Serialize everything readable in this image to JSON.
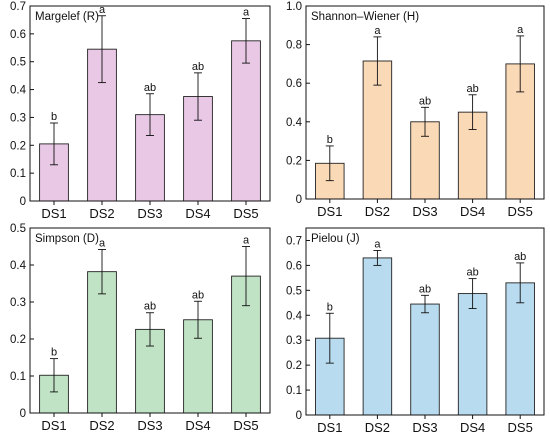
{
  "chart_data": [
    {
      "type": "bar",
      "title": "Margelef  (R)",
      "categories": [
        "DS1",
        "DS2",
        "DS3",
        "DS4",
        "DS5"
      ],
      "values": [
        0.205,
        0.545,
        0.31,
        0.375,
        0.575
      ],
      "errors": [
        0.075,
        0.12,
        0.075,
        0.085,
        0.08
      ],
      "letters": [
        "b",
        "a",
        "ab",
        "ab",
        "a"
      ],
      "ylim": [
        0,
        0.7
      ],
      "yticks": [
        0,
        0.1,
        0.2,
        0.3,
        0.4,
        0.5,
        0.6,
        0.7
      ],
      "ytick_labels": [
        "0",
        "0.1",
        "0.2",
        "0.3",
        "0.4",
        "0.5",
        "0.6",
        "0.7"
      ],
      "color": "#e8c8e4"
    },
    {
      "type": "bar",
      "title": "Shannon–Wiener (H)",
      "categories": [
        "DS1",
        "DS2",
        "DS3",
        "DS4",
        "DS5"
      ],
      "values": [
        0.185,
        0.715,
        0.4,
        0.45,
        0.7
      ],
      "errors": [
        0.09,
        0.125,
        0.075,
        0.09,
        0.145
      ],
      "letters": [
        "b",
        "a",
        "ab",
        "ab",
        "a"
      ],
      "ylim": [
        0,
        1.0
      ],
      "yticks": [
        0,
        0.2,
        0.4,
        0.6,
        0.8,
        1.0
      ],
      "ytick_labels": [
        "0",
        "0.2",
        "0.4",
        "0.6",
        "0.8",
        "1.0"
      ],
      "color": "#fad9b6"
    },
    {
      "type": "bar",
      "title": "Simpson (D)",
      "categories": [
        "DS1",
        "DS2",
        "DS3",
        "DS4",
        "DS5"
      ],
      "values": [
        0.102,
        0.382,
        0.226,
        0.252,
        0.37
      ],
      "errors": [
        0.045,
        0.06,
        0.045,
        0.05,
        0.08
      ],
      "letters": [
        "b",
        "a",
        "ab",
        "ab",
        "a"
      ],
      "ylim": [
        0,
        0.5
      ],
      "yticks": [
        0,
        0.1,
        0.2,
        0.3,
        0.4,
        0.5
      ],
      "ytick_labels": [
        "0",
        "0.1",
        "0.2",
        "0.3",
        "0.4",
        "0.5"
      ],
      "color": "#bfe3c4"
    },
    {
      "type": "bar",
      "title": "Pielou (J)",
      "categories": [
        "DS1",
        "DS2",
        "DS3",
        "DS4",
        "DS5"
      ],
      "values": [
        0.308,
        0.63,
        0.445,
        0.487,
        0.53
      ],
      "errors": [
        0.1,
        0.03,
        0.035,
        0.06,
        0.08
      ],
      "letters": [
        "b",
        "a",
        "ab",
        "ab",
        "ab"
      ],
      "ylim": [
        0,
        0.75
      ],
      "yticks": [
        0,
        0.1,
        0.2,
        0.3,
        0.4,
        0.5,
        0.6,
        0.7
      ],
      "ytick_labels": [
        "0",
        "0.1",
        "0.2",
        "0.3",
        "0.4",
        "0.5",
        "0.6",
        "0.7"
      ],
      "color": "#b9dbef"
    }
  ]
}
